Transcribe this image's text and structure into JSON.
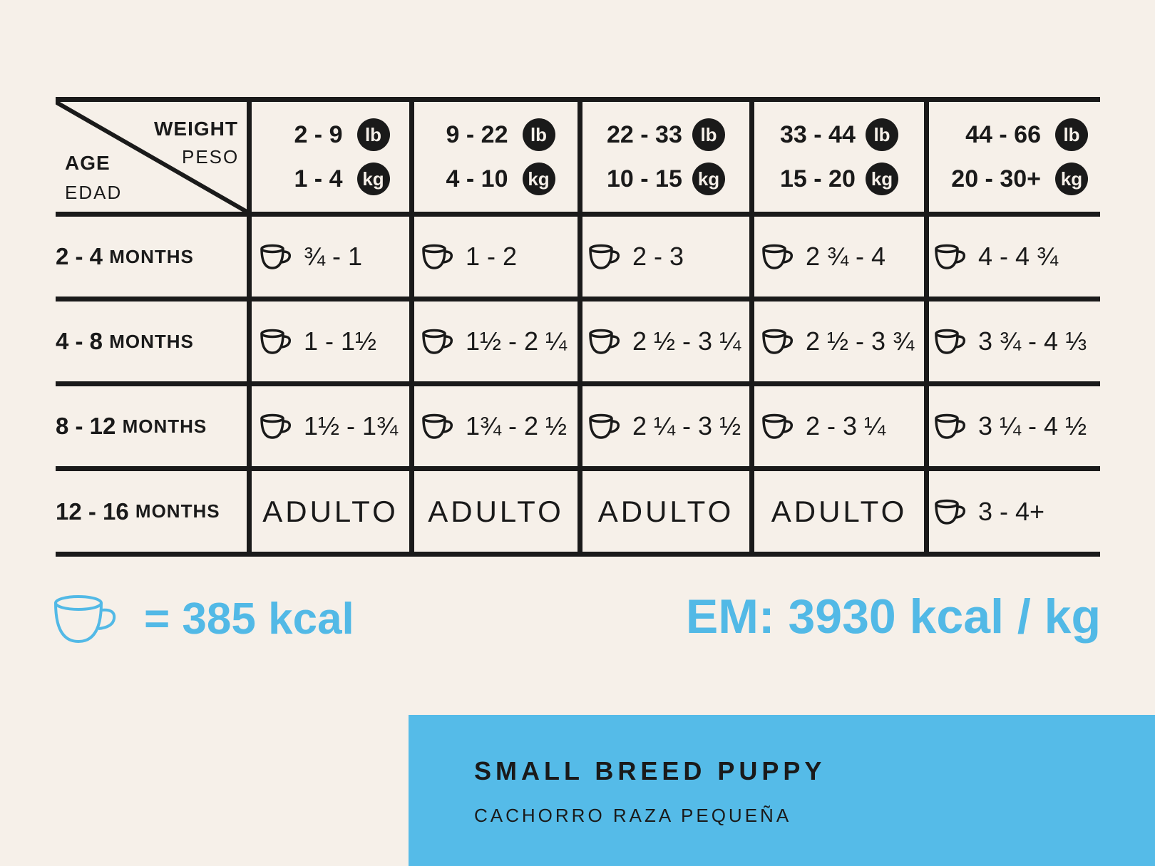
{
  "header": {
    "weight_en": "WEIGHT",
    "weight_es": "PESO",
    "age_en": "AGE",
    "age_es": "EDAD",
    "lb_unit": "lb",
    "kg_unit": "kg",
    "columns": [
      {
        "lb": "2 - 9",
        "kg": "1 - 4"
      },
      {
        "lb": "9 - 22",
        "kg": "4 - 10"
      },
      {
        "lb": "22 - 33",
        "kg": "10 - 15"
      },
      {
        "lb": "33 - 44",
        "kg": "15 - 20"
      },
      {
        "lb": "44 - 66",
        "kg": "20 - 30+"
      }
    ]
  },
  "rows": [
    {
      "age_num": "2 - 4",
      "age_unit": "MONTHS",
      "values": [
        "¾ - 1",
        "1 - 2",
        "2 - 3",
        "2 ¾ - 4",
        "4 - 4 ¾"
      ]
    },
    {
      "age_num": "4 - 8",
      "age_unit": "MONTHS",
      "values": [
        "1 - 1½",
        "1½ - 2 ¼",
        "2 ½ - 3 ¼",
        "2 ½ - 3 ¾",
        "3 ¾ - 4 ⅓"
      ]
    },
    {
      "age_num": "8 - 12",
      "age_unit": "MONTHS",
      "values": [
        "1½ - 1¾",
        "1¾ - 2 ½",
        "2 ¼ - 3 ½",
        "2 - 3 ¼",
        "3 ¼ - 4 ½"
      ]
    },
    {
      "age_num": "12 - 16",
      "age_unit": "MONTHS",
      "values": [
        "ADULTO",
        "ADULTO",
        "ADULTO",
        "ADULTO",
        "3 - 4+"
      ]
    }
  ],
  "legend": {
    "cup_kcal": "= 385 kcal",
    "em": "EM: 3930 kcal / kg"
  },
  "banner": {
    "title": "SMALL BREED PUPPY",
    "subtitle": "CACHORRO RAZA PEQUEÑA"
  },
  "colors": {
    "accent": "#52b9e6",
    "ink": "#1a1a1a",
    "background": "#f6f0e9",
    "banner": "#55bbe8"
  },
  "icons": {
    "cup": "cup-icon"
  }
}
